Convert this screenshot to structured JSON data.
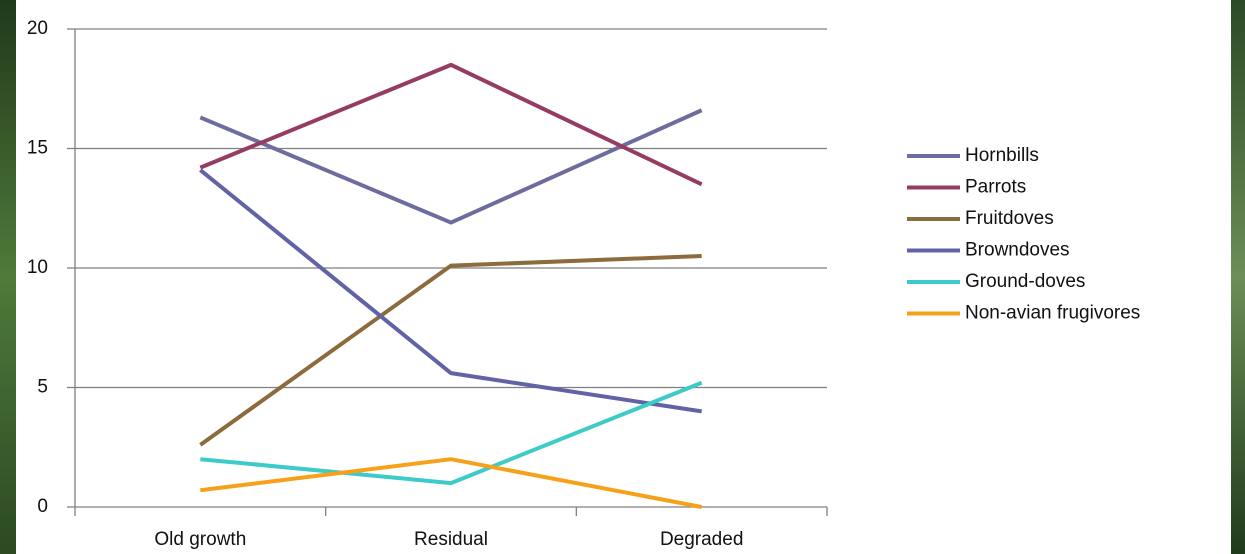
{
  "chart_data": {
    "type": "line",
    "categories": [
      "Old growth",
      "Residual",
      "Degraded"
    ],
    "series": [
      {
        "name": "Hornbills",
        "color": "#6e6c9f",
        "values": [
          16.3,
          11.9,
          16.6
        ]
      },
      {
        "name": "Parrots",
        "color": "#953c64",
        "values": [
          14.2,
          18.5,
          13.5
        ]
      },
      {
        "name": "Fruitdoves",
        "color": "#8c6b3c",
        "values": [
          2.6,
          10.1,
          10.5
        ]
      },
      {
        "name": "Browndoves",
        "color": "#6262a6",
        "values": [
          14.1,
          5.6,
          4.0
        ]
      },
      {
        "name": "Ground-doves",
        "color": "#3ccbc8",
        "values": [
          2.0,
          1.0,
          5.2
        ]
      },
      {
        "name": "Non-avian frugivores",
        "color": "#f7a11a",
        "values": [
          0.7,
          2.0,
          0
        ]
      }
    ],
    "ylim": [
      0,
      20
    ],
    "yticks": [
      0,
      5,
      10,
      15,
      20
    ],
    "grid": true,
    "legend": "right"
  }
}
